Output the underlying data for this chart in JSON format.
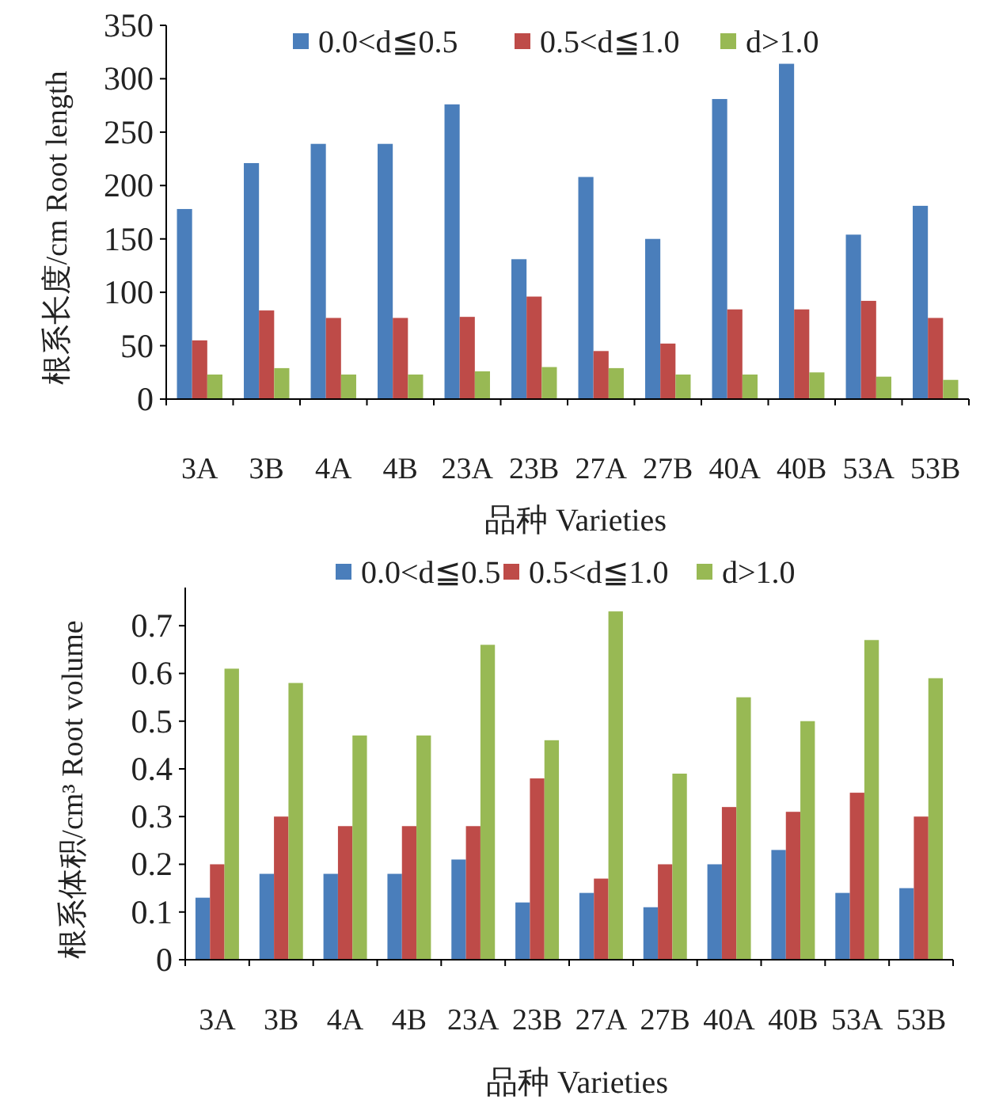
{
  "chart_data": [
    {
      "type": "bar",
      "ylabel": "根系长度/cm Root length",
      "xlabel": "品种  Varieties",
      "categories": [
        "3A",
        "3B",
        "4A",
        "4B",
        "23A",
        "23B",
        "27A",
        "27B",
        "40A",
        "40B",
        "53A",
        "53B"
      ],
      "series": [
        {
          "name": "0.0<d≦0.5",
          "color": "#4a7ebb",
          "values": [
            178,
            221,
            239,
            239,
            276,
            131,
            208,
            150,
            281,
            314,
            154,
            181
          ]
        },
        {
          "name": "0.5<d≦1.0",
          "color": "#be4b48",
          "values": [
            55,
            83,
            76,
            76,
            77,
            96,
            45,
            52,
            84,
            84,
            92,
            76
          ]
        },
        {
          "name": "d>1.0",
          "color": "#98b954",
          "values": [
            23,
            29,
            23,
            23,
            26,
            30,
            29,
            23,
            23,
            25,
            21,
            18
          ]
        }
      ],
      "ylim": [
        0,
        350
      ],
      "yticks": [
        0,
        50,
        100,
        150,
        200,
        250,
        300,
        350
      ],
      "legend": "top",
      "grid": false
    },
    {
      "type": "bar",
      "ylabel": "根系体积/cm³ Root volume",
      "xlabel": "品种  Varieties",
      "categories": [
        "3A",
        "3B",
        "4A",
        "4B",
        "23A",
        "23B",
        "27A",
        "27B",
        "40A",
        "40B",
        "53A",
        "53B"
      ],
      "series": [
        {
          "name": "0.0<d≦0.5",
          "color": "#4a7ebb",
          "values": [
            0.13,
            0.18,
            0.18,
            0.18,
            0.21,
            0.12,
            0.14,
            0.11,
            0.2,
            0.23,
            0.14,
            0.15
          ]
        },
        {
          "name": "0.5<d≦1.0",
          "color": "#be4b48",
          "values": [
            0.2,
            0.3,
            0.28,
            0.28,
            0.28,
            0.38,
            0.17,
            0.2,
            0.32,
            0.31,
            0.35,
            0.3
          ]
        },
        {
          "name": "d>1.0",
          "color": "#98b954",
          "values": [
            0.61,
            0.58,
            0.47,
            0.47,
            0.66,
            0.46,
            0.73,
            0.39,
            0.55,
            0.5,
            0.67,
            0.59
          ]
        }
      ],
      "ylim": [
        0,
        0.78
      ],
      "yticks": [
        0,
        0.1,
        0.2,
        0.3,
        0.4,
        0.5,
        0.6,
        0.7
      ],
      "legend": "top",
      "grid": false
    }
  ]
}
